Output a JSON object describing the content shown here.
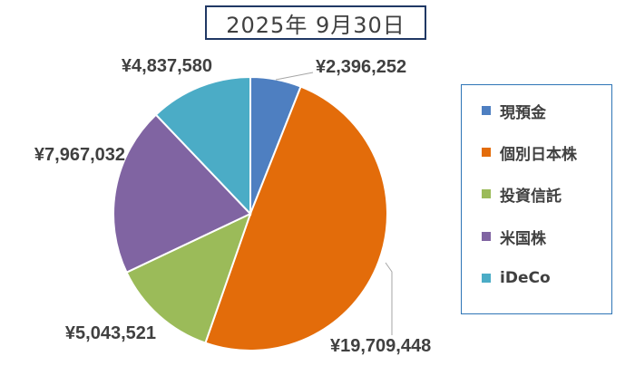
{
  "chart_data": {
    "type": "pie",
    "title": "2025年 9月30日",
    "categories": [
      "現預金",
      "個別日本株",
      "投資信託",
      "米国株",
      "iDeCo"
    ],
    "values": [
      2396252,
      19709448,
      5043521,
      7967032,
      4837580
    ],
    "data_labels": [
      "¥2,396,252",
      "¥19,709,448",
      "¥5,043,521",
      "¥7,967,032",
      "¥4,837,580"
    ],
    "colors": [
      "#4e7fc1",
      "#e36c0a",
      "#9bbb59",
      "#8064a2",
      "#4bacc6"
    ],
    "legend_position": "right",
    "start": "top",
    "direction": "clockwise"
  }
}
